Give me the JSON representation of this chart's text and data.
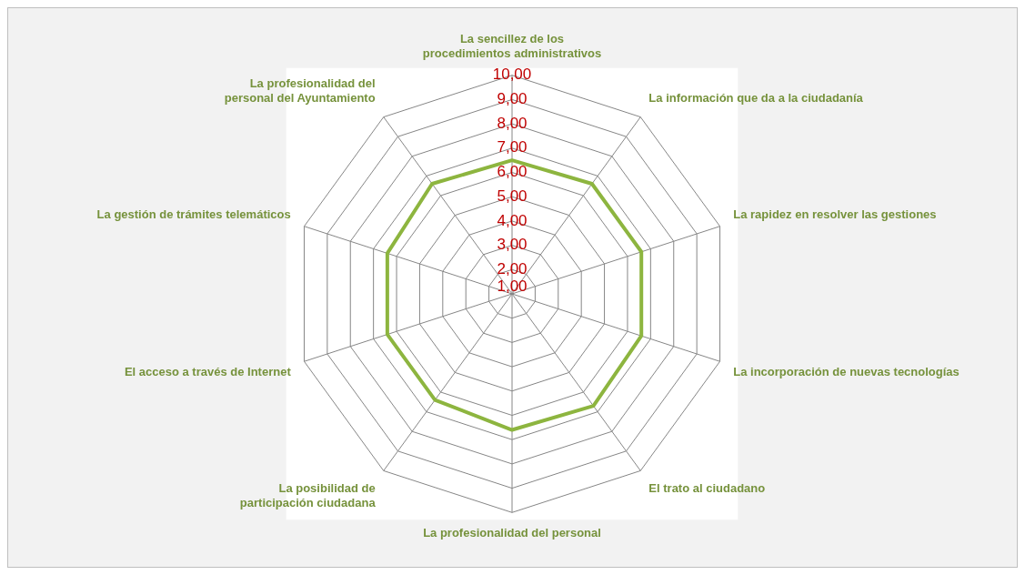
{
  "chart_data": {
    "type": "radar",
    "categories": [
      "La sencillez de los procedimientos administrativos",
      "La información que da a la ciudadanía",
      "La rapidez en resolver las gestiones",
      "La incorporación de nuevas tecnologías",
      "El trato al ciudadano",
      "La profesionalidad del personal",
      "La posibilidad de participación ciudadana",
      "El acceso a través de Internet",
      "La gestión de trámites telemáticos",
      "La profesionalidad del personal del Ayuntamiento"
    ],
    "series": [
      {
        "color": "#8db53f",
        "values": [
          6.5,
          6.6,
          6.6,
          6.6,
          6.7,
          6.6,
          6.4,
          6.4,
          6.4,
          6.6
        ]
      }
    ],
    "ylim": [
      1,
      10
    ],
    "yticks": [
      {
        "value": 1,
        "label": "1,00"
      },
      {
        "value": 2,
        "label": "2,00"
      },
      {
        "value": 3,
        "label": "3,00"
      },
      {
        "value": 4,
        "label": "4,00"
      },
      {
        "value": 5,
        "label": "5,00"
      },
      {
        "value": 6,
        "label": "6,00"
      },
      {
        "value": 7,
        "label": "7,00"
      },
      {
        "value": 8,
        "label": "8,00"
      },
      {
        "value": 9,
        "label": "9,00"
      },
      {
        "value": 10,
        "label": "10,00"
      }
    ],
    "grid": true,
    "legend": false,
    "marker": "none",
    "line_style": "solid"
  }
}
